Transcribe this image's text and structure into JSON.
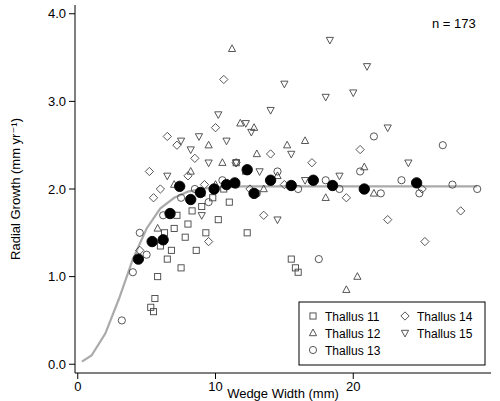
{
  "chart_data": {
    "type": "scatter",
    "x_label": "Wedge Width (mm)",
    "y_label": "Radial Growth (mm yr⁻¹)",
    "annotations": [
      {
        "text": "n = 173"
      }
    ],
    "xlim": [
      -0.2,
      30
    ],
    "ylim": [
      -0.1,
      4.1
    ],
    "xticks": [
      0,
      10,
      20
    ],
    "yticks": [
      {
        "value": 0,
        "label": "0.0"
      },
      {
        "value": 1,
        "label": "1.0"
      },
      {
        "value": 2,
        "label": "2.0"
      },
      {
        "value": 3,
        "label": "3.0"
      },
      {
        "value": 4,
        "label": "4.0"
      }
    ],
    "grid": false,
    "legend": "lower right",
    "series": [
      {
        "name": "Thallus 11",
        "marker": "square",
        "color": "#444444",
        "x": [
          5.3,
          5.6,
          5.5,
          5.8,
          6.0,
          6.3,
          6.5,
          6.8,
          7.0,
          7.2,
          7.5,
          7.8,
          8.0,
          8.3,
          8.6,
          9.0,
          9.3,
          9.8,
          10.2,
          10.6,
          11.0,
          11.5,
          12.3,
          15.8,
          16.0,
          15.5
        ],
        "values": [
          0.65,
          0.75,
          0.6,
          1.0,
          1.35,
          1.5,
          1.2,
          1.3,
          1.55,
          1.7,
          1.1,
          1.45,
          1.6,
          1.75,
          1.3,
          1.8,
          1.5,
          1.9,
          1.65,
          2.0,
          1.85,
          2.3,
          1.5,
          1.1,
          1.05,
          1.2
        ]
      },
      {
        "name": "Thallus 12",
        "marker": "triangle",
        "color": "#444444",
        "x": [
          5.8,
          7.0,
          8.2,
          9.0,
          9.5,
          10.5,
          11.2,
          11.8,
          12.2,
          13.0,
          13.5,
          14.5,
          15.2,
          16.5,
          18.0,
          19.5,
          20.3,
          20.8,
          21.5,
          10.0,
          12.8
        ],
        "values": [
          1.55,
          2.05,
          2.2,
          1.95,
          2.5,
          2.3,
          3.6,
          2.75,
          2.2,
          2.4,
          2.0,
          2.15,
          2.5,
          2.55,
          1.9,
          0.85,
          1.0,
          2.25,
          1.95,
          2.05,
          2.7
        ]
      },
      {
        "name": "Thallus 13",
        "marker": "circle",
        "color": "#444444",
        "x": [
          3.2,
          4.0,
          4.5,
          5.0,
          5.5,
          6.2,
          7.5,
          8.5,
          9.5,
          10.5,
          11.5,
          13.0,
          14.5,
          16.0,
          17.5,
          18.0,
          19.0,
          20.5,
          22.0,
          23.5,
          24.8,
          26.5,
          27.2,
          29.0,
          21.5
        ],
        "values": [
          0.5,
          1.05,
          1.5,
          1.25,
          1.4,
          1.7,
          1.9,
          2.0,
          1.85,
          2.1,
          2.05,
          1.95,
          2.2,
          2.0,
          1.2,
          2.1,
          2.0,
          2.2,
          1.95,
          2.1,
          1.95,
          2.5,
          2.05,
          2.0,
          2.6
        ]
      },
      {
        "name": "Thallus 14",
        "marker": "diamond",
        "color": "#444444",
        "x": [
          4.5,
          5.2,
          5.5,
          6.0,
          6.5,
          7.2,
          8.0,
          8.5,
          9.2,
          10.0,
          10.6,
          11.5,
          12.5,
          13.5,
          14.0,
          15.0,
          17.0,
          19.5,
          20.5,
          22.5,
          25.2,
          25.0,
          27.8,
          9.5
        ],
        "values": [
          1.3,
          2.2,
          1.9,
          2.0,
          2.6,
          2.5,
          2.15,
          2.35,
          2.05,
          2.7,
          3.25,
          2.3,
          2.0,
          1.7,
          2.4,
          2.05,
          2.3,
          1.9,
          2.45,
          1.65,
          1.4,
          2.0,
          1.75,
          1.4
        ]
      },
      {
        "name": "Thallus 15",
        "marker": "triangle_down",
        "color": "#444444",
        "x": [
          6.5,
          7.5,
          8.2,
          8.8,
          9.5,
          10.2,
          10.8,
          11.5,
          12.2,
          12.6,
          13.2,
          14.0,
          15.0,
          15.5,
          16.5,
          18.0,
          18.3,
          19.0,
          20.0,
          21.0,
          22.5,
          24.0,
          14.5,
          9.0
        ],
        "values": [
          2.15,
          2.55,
          2.45,
          2.6,
          2.3,
          2.85,
          2.55,
          2.3,
          2.75,
          2.65,
          2.2,
          2.9,
          3.2,
          2.4,
          2.1,
          3.05,
          3.7,
          2.15,
          3.1,
          3.4,
          2.7,
          2.3,
          1.65,
          1.7
        ]
      },
      {
        "type": "line",
        "line_style": "solid",
        "color": "#aaaaaa",
        "x": [
          0.3,
          1,
          2,
          3,
          4,
          5,
          6,
          7,
          8,
          9,
          10,
          12,
          15,
          20,
          25,
          29
        ],
        "values": [
          0.03,
          0.1,
          0.35,
          0.75,
          1.2,
          1.55,
          1.78,
          1.9,
          1.97,
          2.0,
          2.02,
          2.03,
          2.03,
          2.03,
          2.03,
          2.03
        ]
      },
      {
        "marker": "filled_circle",
        "color": "#000000",
        "x": [
          4.4,
          5.4,
          6.2,
          6.7,
          7.4,
          8.2,
          8.9,
          9.9,
          10.8,
          11.4,
          12.3,
          12.8,
          14.0,
          15.5,
          17.1,
          18.5,
          20.8,
          24.6
        ],
        "values": [
          1.2,
          1.4,
          1.42,
          1.72,
          2.03,
          1.88,
          1.96,
          2.0,
          2.05,
          2.07,
          2.22,
          1.95,
          2.1,
          2.04,
          2.1,
          2.04,
          2.0,
          2.07
        ]
      }
    ]
  }
}
